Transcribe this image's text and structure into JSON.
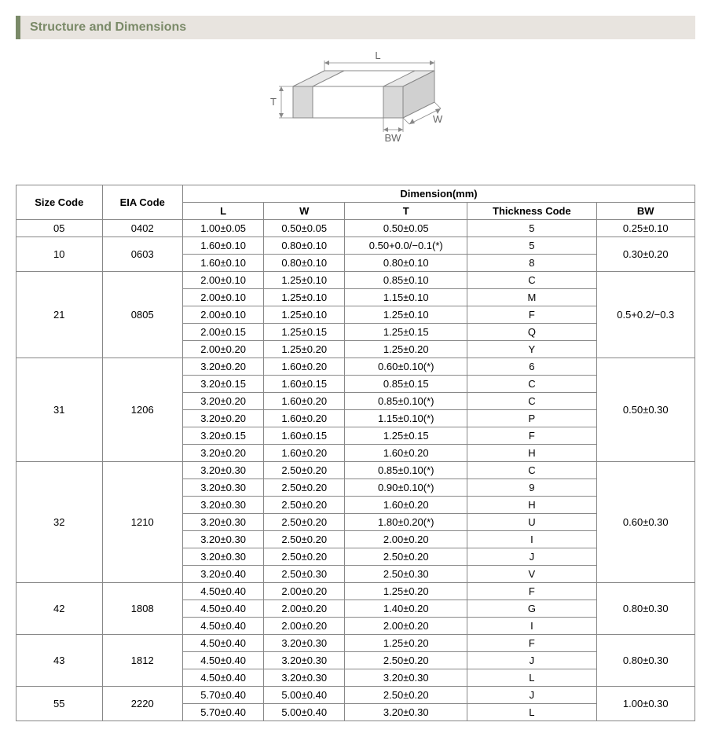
{
  "header": {
    "title": "Structure and Dimensions"
  },
  "diagram": {
    "labels": {
      "L": "L",
      "W": "W",
      "T": "T",
      "BW": "BW"
    },
    "stroke_color": "#888888",
    "fill_color": "#ffffff",
    "end_fill": "#d8d8d8",
    "text_color": "#666666"
  },
  "table": {
    "header_top": {
      "size_code": "Size Code",
      "eia_code": "EIA Code",
      "dimension": "Dimension(mm)"
    },
    "header_sub": {
      "L": "L",
      "W": "W",
      "T": "T",
      "thickness": "Thickness  Code",
      "BW": "BW"
    },
    "groups": [
      {
        "size": "05",
        "eia": "0402",
        "bw": "0.25±0.10",
        "rows": [
          {
            "L": "1.00±0.05",
            "W": "0.50±0.05",
            "T": "0.50±0.05",
            "tc": "5"
          }
        ]
      },
      {
        "size": "10",
        "eia": "0603",
        "bw": "0.30±0.20",
        "rows": [
          {
            "L": "1.60±0.10",
            "W": "0.80±0.10",
            "T": "0.50+0.0/−0.1(*)",
            "tc": "5"
          },
          {
            "L": "1.60±0.10",
            "W": "0.80±0.10",
            "T": "0.80±0.10",
            "tc": "8"
          }
        ]
      },
      {
        "size": "21",
        "eia": "0805",
        "bw": "0.5+0.2/−0.3",
        "rows": [
          {
            "L": "2.00±0.10",
            "W": "1.25±0.10",
            "T": "0.85±0.10",
            "tc": "C"
          },
          {
            "L": "2.00±0.10",
            "W": "1.25±0.10",
            "T": "1.15±0.10",
            "tc": "M"
          },
          {
            "L": "2.00±0.10",
            "W": "1.25±0.10",
            "T": "1.25±0.10",
            "tc": "F"
          },
          {
            "L": "2.00±0.15",
            "W": "1.25±0.15",
            "T": "1.25±0.15",
            "tc": "Q"
          },
          {
            "L": "2.00±0.20",
            "W": "1.25±0.20",
            "T": "1.25±0.20",
            "tc": "Y"
          }
        ]
      },
      {
        "size": "31",
        "eia": "1206",
        "bw": "0.50±0.30",
        "rows": [
          {
            "L": "3.20±0.20",
            "W": "1.60±0.20",
            "T": "0.60±0.10(*)",
            "tc": "6"
          },
          {
            "L": "3.20±0.15",
            "W": "1.60±0.15",
            "T": "0.85±0.15",
            "tc": "C"
          },
          {
            "L": "3.20±0.20",
            "W": "1.60±0.20",
            "T": "0.85±0.10(*)",
            "tc": "C"
          },
          {
            "L": "3.20±0.20",
            "W": "1.60±0.20",
            "T": "1.15±0.10(*)",
            "tc": "P"
          },
          {
            "L": "3.20±0.15",
            "W": "1.60±0.15",
            "T": "1.25±0.15",
            "tc": "F"
          },
          {
            "L": "3.20±0.20",
            "W": "1.60±0.20",
            "T": "1.60±0.20",
            "tc": "H"
          }
        ]
      },
      {
        "size": "32",
        "eia": "1210",
        "bw": "0.60±0.30",
        "rows": [
          {
            "L": "3.20±0.30",
            "W": "2.50±0.20",
            "T": "0.85±0.10(*)",
            "tc": "C"
          },
          {
            "L": "3.20±0.30",
            "W": "2.50±0.20",
            "T": "0.90±0.10(*)",
            "tc": "9"
          },
          {
            "L": "3.20±0.30",
            "W": "2.50±0.20",
            "T": "1.60±0.20",
            "tc": "H"
          },
          {
            "L": "3.20±0.30",
            "W": "2.50±0.20",
            "T": "1.80±0.20(*)",
            "tc": "U"
          },
          {
            "L": "3.20±0.30",
            "W": "2.50±0.20",
            "T": "2.00±0.20",
            "tc": "I"
          },
          {
            "L": "3.20±0.30",
            "W": "2.50±0.20",
            "T": "2.50±0.20",
            "tc": "J"
          },
          {
            "L": "3.20±0.40",
            "W": "2.50±0.30",
            "T": "2.50±0.30",
            "tc": "V"
          }
        ]
      },
      {
        "size": "42",
        "eia": "1808",
        "bw": "0.80±0.30",
        "rows": [
          {
            "L": "4.50±0.40",
            "W": "2.00±0.20",
            "T": "1.25±0.20",
            "tc": "F"
          },
          {
            "L": "4.50±0.40",
            "W": "2.00±0.20",
            "T": "1.40±0.20",
            "tc": "G"
          },
          {
            "L": "4.50±0.40",
            "W": "2.00±0.20",
            "T": "2.00±0.20",
            "tc": "I"
          }
        ]
      },
      {
        "size": "43",
        "eia": "1812",
        "bw": "0.80±0.30",
        "rows": [
          {
            "L": "4.50±0.40",
            "W": "3.20±0.30",
            "T": "1.25±0.20",
            "tc": "F"
          },
          {
            "L": "4.50±0.40",
            "W": "3.20±0.30",
            "T": "2.50±0.20",
            "tc": "J"
          },
          {
            "L": "4.50±0.40",
            "W": "3.20±0.30",
            "T": "3.20±0.30",
            "tc": "L"
          }
        ]
      },
      {
        "size": "55",
        "eia": "2220",
        "bw": "1.00±0.30",
        "rows": [
          {
            "L": "5.70±0.40",
            "W": "5.00±0.40",
            "T": "2.50±0.20",
            "tc": "J"
          },
          {
            "L": "5.70±0.40",
            "W": "5.00±0.40",
            "T": "3.20±0.30",
            "tc": "L"
          }
        ]
      }
    ]
  }
}
